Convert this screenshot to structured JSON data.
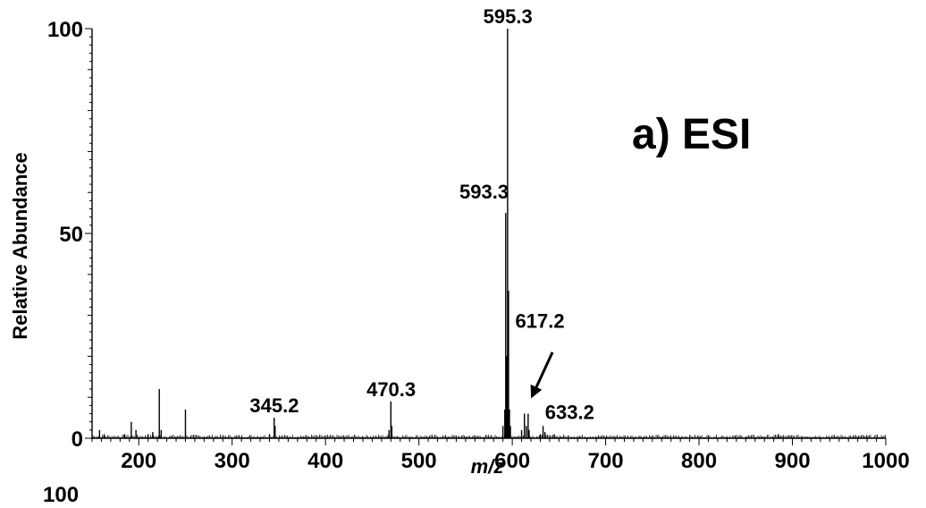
{
  "chart_data": {
    "type": "bar",
    "title": "",
    "panel_label": "a) ESI",
    "xlabel": "m/z",
    "ylabel": "Relative Abundance",
    "xlim": [
      150,
      1000
    ],
    "ylim": [
      0,
      100
    ],
    "x_ticks": [
      200,
      300,
      400,
      500,
      600,
      700,
      800,
      900,
      1000
    ],
    "y_ticks": [
      0,
      50,
      100
    ],
    "bottom_fragment": "100",
    "peaks": [
      {
        "mz": 158,
        "abundance": 2
      },
      {
        "mz": 163,
        "abundance": 1
      },
      {
        "mz": 185,
        "abundance": 1
      },
      {
        "mz": 192,
        "abundance": 4
      },
      {
        "mz": 197,
        "abundance": 2
      },
      {
        "mz": 210,
        "abundance": 1
      },
      {
        "mz": 215,
        "abundance": 1.5
      },
      {
        "mz": 222,
        "abundance": 12
      },
      {
        "mz": 224,
        "abundance": 2
      },
      {
        "mz": 250,
        "abundance": 7
      },
      {
        "mz": 340,
        "abundance": 1
      },
      {
        "mz": 345,
        "abundance": 5
      },
      {
        "mz": 346,
        "abundance": 3
      },
      {
        "mz": 468,
        "abundance": 2
      },
      {
        "mz": 470,
        "abundance": 9
      },
      {
        "mz": 471,
        "abundance": 3
      },
      {
        "mz": 590,
        "abundance": 3
      },
      {
        "mz": 592,
        "abundance": 7
      },
      {
        "mz": 593,
        "abundance": 55
      },
      {
        "mz": 594,
        "abundance": 20
      },
      {
        "mz": 595,
        "abundance": 100
      },
      {
        "mz": 596,
        "abundance": 36
      },
      {
        "mz": 597,
        "abundance": 7
      },
      {
        "mz": 598,
        "abundance": 3
      },
      {
        "mz": 610,
        "abundance": 2
      },
      {
        "mz": 613,
        "abundance": 6
      },
      {
        "mz": 615,
        "abundance": 3
      },
      {
        "mz": 617,
        "abundance": 6
      },
      {
        "mz": 618,
        "abundance": 2
      },
      {
        "mz": 630,
        "abundance": 1
      },
      {
        "mz": 633,
        "abundance": 3
      },
      {
        "mz": 635,
        "abundance": 1.5
      },
      {
        "mz": 645,
        "abundance": 1
      },
      {
        "mz": 885,
        "abundance": 1
      }
    ],
    "annotations": [
      {
        "text": "595.3",
        "mz": 595.3,
        "abundance": 100,
        "anchor": "top"
      },
      {
        "text": "593.3",
        "mz": 593.3,
        "abundance": 55,
        "anchor": "left"
      },
      {
        "text": "617.2",
        "mz": 617.2,
        "abundance": 6,
        "anchor": "arrow"
      },
      {
        "text": "633.2",
        "mz": 633.2,
        "abundance": 3,
        "anchor": "right"
      },
      {
        "text": "470.3",
        "mz": 470.3,
        "abundance": 9,
        "anchor": "top"
      },
      {
        "text": "345.2",
        "mz": 345.2,
        "abundance": 5,
        "anchor": "top"
      }
    ]
  }
}
